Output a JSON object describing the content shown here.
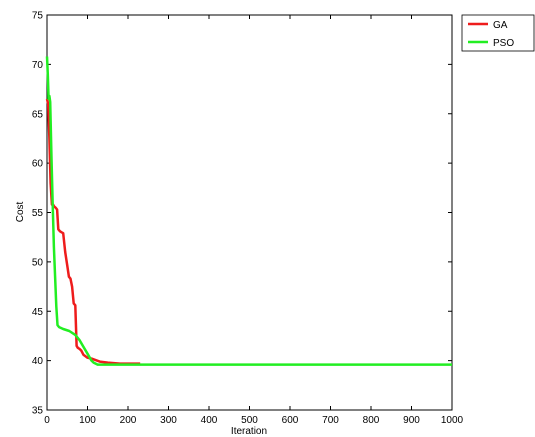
{
  "chart_data": {
    "type": "line",
    "title": "",
    "xlabel": "Iteration",
    "ylabel": "Cost",
    "xlim": [
      0,
      1000
    ],
    "ylim": [
      35,
      75
    ],
    "xticks": [
      0,
      100,
      200,
      300,
      400,
      500,
      600,
      700,
      800,
      900,
      1000
    ],
    "yticks": [
      35,
      40,
      45,
      50,
      55,
      60,
      65,
      70,
      75
    ],
    "grid": false,
    "legend_position": "outside-top-right",
    "series": [
      {
        "name": "GA",
        "color": "#ee1c1c",
        "x": [
          0,
          3,
          6,
          9,
          12,
          15,
          18,
          21,
          25,
          28,
          32,
          36,
          40,
          45,
          50,
          54,
          58,
          62,
          66,
          70,
          73,
          76,
          80,
          85,
          90,
          100,
          110,
          130,
          150,
          180,
          210,
          230
        ],
        "y": [
          66.5,
          66.0,
          62.5,
          58.0,
          55.8,
          55.8,
          55.6,
          55.5,
          55.3,
          53.3,
          53.1,
          53.0,
          52.9,
          51.0,
          49.6,
          48.5,
          48.3,
          47.5,
          45.8,
          45.6,
          41.5,
          41.3,
          41.2,
          41.0,
          40.6,
          40.3,
          40.2,
          39.9,
          39.8,
          39.7,
          39.7,
          39.7
        ]
      },
      {
        "name": "PSO",
        "color": "#22ee22",
        "x": [
          0,
          2,
          4,
          6,
          8,
          11,
          14,
          17,
          20,
          23,
          26,
          30,
          40,
          55,
          70,
          80,
          90,
          100,
          110,
          115,
          125,
          140,
          200,
          400,
          600,
          800,
          1000
        ],
        "y": [
          70.8,
          69.0,
          66.5,
          66.8,
          66.2,
          60.5,
          55.8,
          51.5,
          48.5,
          45.5,
          43.6,
          43.4,
          43.2,
          43.0,
          42.6,
          42.1,
          41.4,
          40.7,
          40.0,
          39.8,
          39.6,
          39.6,
          39.6,
          39.6,
          39.6,
          39.6,
          39.6
        ]
      }
    ]
  }
}
